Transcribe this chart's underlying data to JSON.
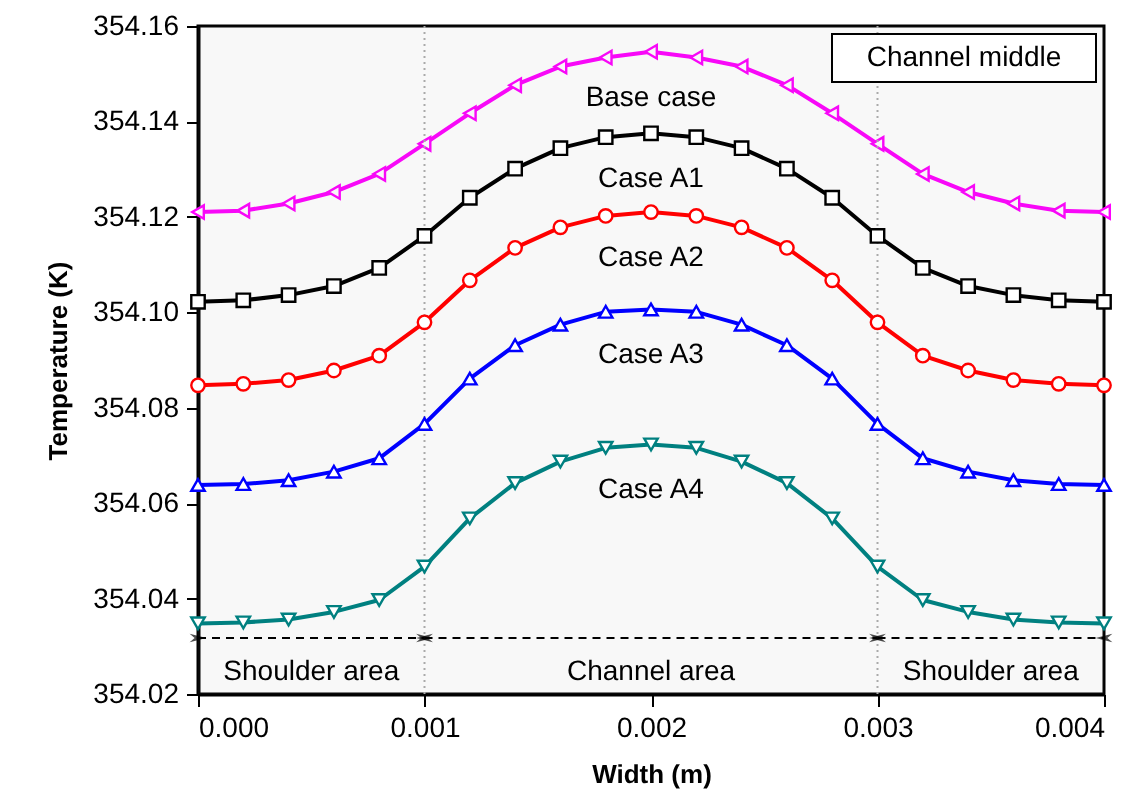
{
  "chart_data": {
    "type": "line",
    "xlabel": "Width (m)",
    "ylabel": "Temperature (K)",
    "x": [
      0,
      0.0002,
      0.0004,
      0.0006,
      0.0008,
      0.001,
      0.0012,
      0.0014,
      0.0016,
      0.0018,
      0.002,
      0.0022,
      0.0024,
      0.0026,
      0.0028,
      0.003,
      0.0032,
      0.0034,
      0.0036,
      0.0038,
      0.004
    ],
    "xlim": [
      0,
      0.004
    ],
    "xticks": [
      {
        "value": 0,
        "label": "0.000"
      },
      {
        "value": 0.001,
        "label": "0.001"
      },
      {
        "value": 0.002,
        "label": "0.002"
      },
      {
        "value": 0.003,
        "label": "0.003"
      },
      {
        "value": 0.004,
        "label": "0.004"
      }
    ],
    "ylim": [
      354.02,
      354.16
    ],
    "yticks": [
      354.02,
      354.04,
      354.06,
      354.08,
      {
        "value": 354.1,
        "label": "354.10"
      },
      354.12,
      354.14,
      354.16
    ],
    "grid": false,
    "legend": false,
    "line_style": "solid",
    "series": [
      {
        "name": "Base case",
        "color": "#ff00ff",
        "marker": "triangle-left",
        "values": [
          354.121,
          354.1213,
          354.1228,
          354.1252,
          354.129,
          354.1353,
          354.1417,
          354.1476,
          354.1515,
          354.1534,
          354.1546,
          354.1534,
          354.1515,
          354.1476,
          354.1417,
          354.1353,
          354.129,
          354.1252,
          354.1228,
          354.1213,
          354.121
        ]
      },
      {
        "name": "Case A1",
        "color": "#000000",
        "marker": "square",
        "values": [
          354.1022,
          354.1025,
          354.1036,
          354.1055,
          354.1093,
          354.116,
          354.124,
          354.1301,
          354.1344,
          354.1367,
          354.1375,
          354.1367,
          354.1344,
          354.1301,
          354.124,
          354.116,
          354.1093,
          354.1055,
          354.1036,
          354.1025,
          354.1022
        ]
      },
      {
        "name": "Case A2",
        "color": "#ff0000",
        "marker": "circle",
        "values": [
          354.0847,
          354.085,
          354.0858,
          354.0878,
          354.0909,
          354.0979,
          354.1067,
          354.1135,
          354.1178,
          354.1202,
          354.121,
          354.1202,
          354.1178,
          354.1135,
          354.1067,
          354.0979,
          354.0909,
          354.0878,
          354.0858,
          354.085,
          354.0847
        ]
      },
      {
        "name": "Case A3",
        "color": "#0000ff",
        "marker": "triangle",
        "values": [
          354.0638,
          354.064,
          354.0648,
          354.0666,
          354.0694,
          354.0766,
          354.0861,
          354.0931,
          354.0974,
          354.1001,
          354.1006,
          354.1001,
          354.0974,
          354.0931,
          354.0861,
          354.0766,
          354.0694,
          354.0666,
          354.0648,
          354.064,
          354.0638
        ]
      },
      {
        "name": "Case A4",
        "color": "#008080",
        "marker": "triangle-down",
        "values": [
          354.0348,
          354.035,
          354.0356,
          354.0372,
          354.0397,
          354.0467,
          354.0568,
          354.0642,
          354.0687,
          354.0716,
          354.0723,
          354.0716,
          354.0687,
          354.0642,
          354.0568,
          354.0467,
          354.0397,
          354.0372,
          354.0356,
          354.035,
          354.0348
        ]
      }
    ],
    "ref_lines": [
      {
        "axis": "x",
        "value": 0.001,
        "color": "#aaaaaa",
        "line_style": "dotted"
      },
      {
        "axis": "x",
        "value": 0.003,
        "color": "#aaaaaa",
        "line_style": "dotted"
      }
    ],
    "bands": [
      {
        "axis": "x",
        "from": 0,
        "to": 0.001,
        "label": "Shoulder area"
      },
      {
        "axis": "x",
        "from": 0.001,
        "to": 0.003,
        "label": "Channel area"
      },
      {
        "axis": "x",
        "from": 0.003,
        "to": 0.004,
        "label": "Shoulder area"
      }
    ],
    "annotations": [
      "Channel middle"
    ]
  }
}
